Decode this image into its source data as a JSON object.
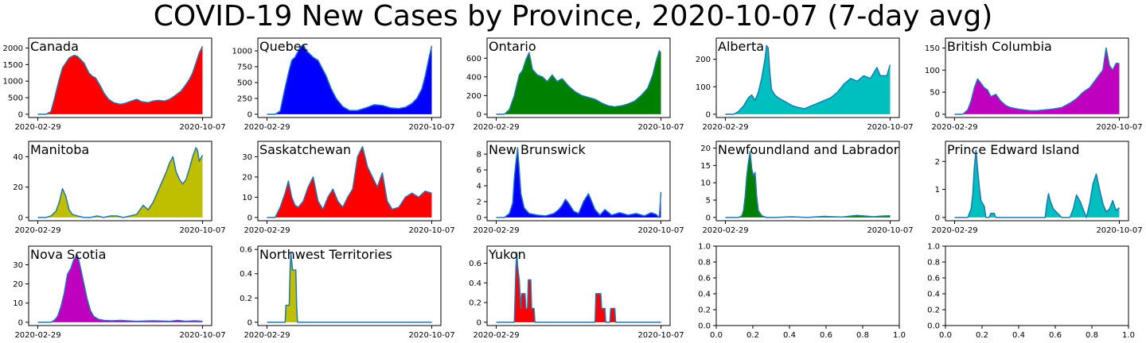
{
  "title": "COVID-19 New Cases by Province, 2020-10-07 (7-day avg)",
  "colors": {
    "line": "#1f77b4"
  },
  "chart_data": [
    {
      "type": "area",
      "title": "Canada",
      "color": "#ff0000",
      "x_ticks": [
        "2020-02-29",
        "2020-10-07"
      ],
      "ylim": [
        0,
        2200
      ],
      "yticks": [
        0,
        500,
        1000,
        1500,
        2000
      ],
      "x": [
        0,
        0.05,
        0.08,
        0.1,
        0.13,
        0.15,
        0.17,
        0.19,
        0.22,
        0.24,
        0.26,
        0.28,
        0.31,
        0.33,
        0.35,
        0.38,
        0.4,
        0.43,
        0.46,
        0.5,
        0.53,
        0.57,
        0.6,
        0.63,
        0.67,
        0.7,
        0.73,
        0.77,
        0.8,
        0.83,
        0.87,
        0.9,
        0.92,
        0.94,
        0.96,
        0.98,
        1
      ],
      "y": [
        0,
        0,
        80,
        450,
        1050,
        1400,
        1550,
        1700,
        1780,
        1750,
        1650,
        1550,
        1250,
        1150,
        1100,
        850,
        650,
        450,
        350,
        300,
        330,
        400,
        450,
        380,
        350,
        400,
        420,
        400,
        450,
        550,
        700,
        900,
        1050,
        1250,
        1550,
        1850,
        2050
      ]
    },
    {
      "type": "area",
      "title": "Quebec",
      "color": "#0000ff",
      "x_ticks": [
        "2020-02-29",
        "2020-10-07"
      ],
      "ylim": [
        0,
        1150
      ],
      "yticks": [
        0,
        250,
        500,
        750,
        1000
      ],
      "x": [
        0,
        0.05,
        0.08,
        0.1,
        0.13,
        0.15,
        0.17,
        0.2,
        0.22,
        0.24,
        0.26,
        0.28,
        0.31,
        0.33,
        0.36,
        0.39,
        0.42,
        0.46,
        0.5,
        0.55,
        0.6,
        0.65,
        0.7,
        0.75,
        0.8,
        0.84,
        0.88,
        0.91,
        0.94,
        0.96,
        0.98,
        1
      ],
      "y": [
        0,
        0,
        50,
        300,
        650,
        850,
        900,
        1050,
        1100,
        1000,
        950,
        900,
        850,
        750,
        600,
        400,
        250,
        120,
        60,
        60,
        100,
        150,
        140,
        100,
        90,
        110,
        170,
        250,
        400,
        600,
        850,
        1080
      ]
    },
    {
      "type": "area",
      "title": "Ontario",
      "color": "#008000",
      "x_ticks": [
        "2020-02-29",
        "2020-10-07"
      ],
      "ylim": [
        0,
        780
      ],
      "yticks": [
        0,
        200,
        400,
        600
      ],
      "x": [
        0,
        0.05,
        0.08,
        0.11,
        0.14,
        0.16,
        0.18,
        0.2,
        0.22,
        0.25,
        0.28,
        0.31,
        0.34,
        0.37,
        0.4,
        0.44,
        0.48,
        0.52,
        0.56,
        0.6,
        0.64,
        0.68,
        0.72,
        0.76,
        0.8,
        0.84,
        0.88,
        0.92,
        0.95,
        0.97,
        0.99,
        1
      ],
      "y": [
        0,
        0,
        50,
        200,
        420,
        470,
        580,
        660,
        480,
        420,
        400,
        350,
        420,
        350,
        380,
        300,
        240,
        200,
        180,
        160,
        120,
        90,
        80,
        90,
        110,
        140,
        200,
        280,
        420,
        560,
        680,
        650
      ]
    },
    {
      "type": "area",
      "title": "Alberta",
      "color": "#00bfbf",
      "x_ticks": [
        "2020-02-29",
        "2020-10-07"
      ],
      "ylim": [
        0,
        265
      ],
      "yticks": [
        0,
        100,
        200
      ],
      "x": [
        0,
        0.05,
        0.08,
        0.11,
        0.14,
        0.16,
        0.18,
        0.2,
        0.22,
        0.24,
        0.25,
        0.26,
        0.27,
        0.28,
        0.3,
        0.32,
        0.35,
        0.38,
        0.41,
        0.44,
        0.48,
        0.52,
        0.56,
        0.6,
        0.64,
        0.68,
        0.72,
        0.76,
        0.8,
        0.84,
        0.88,
        0.92,
        0.94,
        0.96,
        0.98,
        1
      ],
      "y": [
        0,
        0,
        10,
        30,
        60,
        70,
        50,
        80,
        130,
        200,
        250,
        240,
        150,
        90,
        70,
        60,
        50,
        40,
        30,
        25,
        20,
        30,
        40,
        50,
        60,
        80,
        110,
        130,
        120,
        140,
        130,
        170,
        140,
        140,
        140,
        180
      ]
    },
    {
      "type": "area",
      "title": "British Columbia",
      "color": "#bf00bf",
      "x_ticks": [
        "2020-02-29",
        "2020-10-07"
      ],
      "ylim": [
        0,
        165
      ],
      "yticks": [
        0,
        50,
        100,
        150
      ],
      "x": [
        0,
        0.05,
        0.08,
        0.1,
        0.12,
        0.14,
        0.16,
        0.18,
        0.2,
        0.22,
        0.25,
        0.28,
        0.31,
        0.34,
        0.38,
        0.42,
        0.46,
        0.5,
        0.55,
        0.6,
        0.65,
        0.7,
        0.74,
        0.78,
        0.82,
        0.86,
        0.9,
        0.92,
        0.94,
        0.96,
        0.98,
        1
      ],
      "y": [
        0,
        0,
        10,
        30,
        60,
        80,
        70,
        60,
        55,
        40,
        45,
        30,
        20,
        15,
        12,
        10,
        8,
        8,
        10,
        12,
        15,
        25,
        35,
        50,
        60,
        80,
        100,
        150,
        110,
        100,
        115,
        115
      ]
    },
    {
      "type": "area",
      "title": "Manitoba",
      "color": "#bfbf00",
      "x_ticks": [
        "2020-02-29",
        "2020-10-07"
      ],
      "ylim": [
        0,
        48
      ],
      "yticks": [
        0,
        20,
        40
      ],
      "x": [
        0,
        0.05,
        0.08,
        0.11,
        0.13,
        0.15,
        0.17,
        0.19,
        0.21,
        0.24,
        0.28,
        0.32,
        0.36,
        0.4,
        0.44,
        0.48,
        0.52,
        0.56,
        0.6,
        0.64,
        0.67,
        0.7,
        0.74,
        0.78,
        0.8,
        0.82,
        0.84,
        0.86,
        0.88,
        0.9,
        0.92,
        0.94,
        0.96,
        0.97,
        0.98,
        1
      ],
      "y": [
        0,
        0,
        1,
        4,
        10,
        19,
        14,
        5,
        2,
        1,
        0,
        0,
        1,
        0,
        1,
        1,
        0,
        1,
        2,
        8,
        5,
        10,
        20,
        30,
        36,
        40,
        30,
        25,
        22,
        25,
        32,
        40,
        46,
        44,
        37,
        41
      ]
    },
    {
      "type": "area",
      "title": "Saskatchewan",
      "color": "#ff0000",
      "x_ticks": [
        "2020-02-29",
        "2020-10-07"
      ],
      "ylim": [
        0,
        36
      ],
      "yticks": [
        0,
        10,
        20,
        30
      ],
      "x": [
        0,
        0.05,
        0.08,
        0.11,
        0.13,
        0.15,
        0.17,
        0.19,
        0.22,
        0.25,
        0.28,
        0.31,
        0.34,
        0.37,
        0.4,
        0.43,
        0.46,
        0.49,
        0.52,
        0.55,
        0.58,
        0.61,
        0.64,
        0.67,
        0.7,
        0.73,
        0.76,
        0.8,
        0.84,
        0.88,
        0.92,
        0.96,
        1
      ],
      "y": [
        0,
        0,
        5,
        12,
        18,
        10,
        6,
        5,
        8,
        15,
        20,
        8,
        4,
        10,
        14,
        8,
        5,
        10,
        14,
        30,
        35,
        25,
        20,
        15,
        22,
        8,
        4,
        5,
        10,
        12,
        10,
        13,
        12
      ]
    },
    {
      "type": "area",
      "title": "New Brunswick",
      "color": "#0000ff",
      "x_ticks": [
        "2020-02-29",
        "2020-10-07"
      ],
      "ylim": [
        0,
        9.2
      ],
      "yticks": [
        0,
        2,
        4,
        6,
        8
      ],
      "x": [
        0,
        0.05,
        0.08,
        0.1,
        0.11,
        0.12,
        0.13,
        0.14,
        0.15,
        0.17,
        0.2,
        0.25,
        0.3,
        0.35,
        0.38,
        0.4,
        0.42,
        0.44,
        0.47,
        0.5,
        0.53,
        0.56,
        0.6,
        0.63,
        0.66,
        0.7,
        0.75,
        0.8,
        0.85,
        0.9,
        0.94,
        0.97,
        0.99,
        1
      ],
      "y": [
        0,
        0,
        0.5,
        1.8,
        5,
        7,
        8.8,
        6,
        3,
        1.2,
        0.5,
        0.3,
        0.2,
        0.5,
        1,
        1.5,
        2.3,
        1.8,
        0.8,
        0.5,
        2,
        3,
        1,
        0.3,
        1,
        0.3,
        0.6,
        0.3,
        0.5,
        0.2,
        0.6,
        0.4,
        0,
        3.2
      ]
    },
    {
      "type": "area",
      "title": "Newfoundland and Labrador",
      "color": "#008000",
      "x_ticks": [
        "2020-02-29",
        "2020-10-07"
      ],
      "ylim": [
        0,
        21
      ],
      "yticks": [
        0,
        5,
        10,
        15,
        20
      ],
      "x": [
        0,
        0.05,
        0.08,
        0.1,
        0.11,
        0.12,
        0.13,
        0.14,
        0.15,
        0.16,
        0.17,
        0.18,
        0.19,
        0.2,
        0.22,
        0.25,
        0.3,
        0.4,
        0.5,
        0.6,
        0.7,
        0.8,
        0.9,
        0.95,
        1
      ],
      "y": [
        0,
        0,
        0,
        0.5,
        2,
        6,
        12,
        16,
        19,
        14,
        12,
        13,
        6,
        2,
        0.5,
        0,
        0,
        0.2,
        0,
        0.3,
        0.1,
        0.6,
        0.2,
        0.4,
        0.5
      ]
    },
    {
      "type": "area",
      "title": "Prince Edward Island",
      "color": "#00bfbf",
      "x_ticks": [
        "2020-02-29",
        "2020-10-07"
      ],
      "ylim": [
        0,
        2.6
      ],
      "yticks": [
        0,
        1,
        2
      ],
      "x": [
        0,
        0.05,
        0.08,
        0.1,
        0.11,
        0.12,
        0.13,
        0.14,
        0.15,
        0.16,
        0.18,
        0.19,
        0.21,
        0.22,
        0.24,
        0.25,
        0.27,
        0.3,
        0.4,
        0.5,
        0.55,
        0.56,
        0.57,
        0.58,
        0.6,
        0.65,
        0.7,
        0.72,
        0.74,
        0.76,
        0.8,
        0.82,
        0.84,
        0.86,
        0.88,
        0.9,
        0.92,
        0.94,
        0.96,
        0.98,
        1
      ],
      "y": [
        0,
        0,
        0,
        0.3,
        0.8,
        1.8,
        2.4,
        1.7,
        1.1,
        0.6,
        0.4,
        0,
        0,
        0.15,
        0.15,
        0,
        0,
        0,
        0,
        0,
        0,
        0.5,
        0.85,
        0.6,
        0.3,
        0,
        0,
        0.3,
        0.8,
        0.6,
        0,
        0.5,
        1.2,
        1.55,
        1,
        0.5,
        0.2,
        0.3,
        0.6,
        0.25,
        0.35
      ]
    },
    {
      "type": "area",
      "title": "Nova Scotia",
      "color": "#bf00bf",
      "x_ticks": [
        "2020-02-29",
        "2020-10-07"
      ],
      "ylim": [
        0,
        38
      ],
      "yticks": [
        0,
        10,
        20,
        30
      ],
      "x": [
        0,
        0.05,
        0.08,
        0.1,
        0.12,
        0.14,
        0.16,
        0.18,
        0.2,
        0.22,
        0.24,
        0.25,
        0.26,
        0.28,
        0.3,
        0.32,
        0.34,
        0.37,
        0.4,
        0.45,
        0.5,
        0.6,
        0.7,
        0.8,
        0.85,
        0.9,
        0.95,
        1
      ],
      "y": [
        0,
        0,
        0,
        1,
        3,
        8,
        15,
        25,
        28,
        33,
        35,
        32,
        28,
        20,
        12,
        6,
        3,
        1.5,
        1,
        0.8,
        1,
        0.5,
        0.8,
        0.5,
        1,
        0.5,
        0.8,
        0.5
      ]
    },
    {
      "type": "area",
      "title": "Northwest Territories",
      "color": "#bfbf00",
      "x_ticks": [
        "2020-02-29",
        "2020-10-07"
      ],
      "ylim": [
        0,
        0.6
      ],
      "yticks": [
        0,
        0.2,
        0.4,
        0.6
      ],
      "x": [
        0,
        0.11,
        0.115,
        0.135,
        0.14,
        0.145,
        0.155,
        0.16,
        0.175,
        0.18,
        0.185,
        1
      ],
      "y": [
        0,
        0,
        0.14,
        0.14,
        0.43,
        0.57,
        0.43,
        0.43,
        0.43,
        0.14,
        0,
        0
      ]
    },
    {
      "type": "area",
      "title": "Yukon",
      "color": "#ff0000",
      "x_ticks": [
        "2020-02-29",
        "2020-10-07"
      ],
      "ylim": [
        0,
        0.74
      ],
      "yticks": [
        0,
        0.2,
        0.4,
        0.6
      ],
      "x": [
        0,
        0.11,
        0.115,
        0.12,
        0.125,
        0.13,
        0.14,
        0.15,
        0.155,
        0.175,
        0.18,
        0.19,
        0.195,
        0.2,
        0.21,
        0.215,
        0.23,
        0.235,
        0.6,
        0.605,
        0.635,
        0.64,
        0.66,
        0.665,
        0.69,
        0.695,
        0.72,
        0.725,
        1
      ],
      "y": [
        0,
        0,
        0.29,
        0.57,
        0.71,
        0.57,
        0.43,
        0.14,
        0.29,
        0.29,
        0.14,
        0.14,
        0.43,
        0.43,
        0.43,
        0.14,
        0.14,
        0,
        0,
        0.29,
        0.29,
        0.14,
        0.14,
        0,
        0,
        0.14,
        0.14,
        0,
        0
      ]
    },
    {
      "type": "empty",
      "ylim": [
        0,
        1
      ],
      "xlim": [
        0,
        1
      ],
      "ticks": [
        0,
        0.2,
        0.4,
        0.6,
        0.8,
        1.0
      ]
    },
    {
      "type": "empty",
      "ylim": [
        0,
        1
      ],
      "xlim": [
        0,
        1
      ],
      "ticks": [
        0,
        0.2,
        0.4,
        0.6,
        0.8,
        1.0
      ]
    }
  ]
}
